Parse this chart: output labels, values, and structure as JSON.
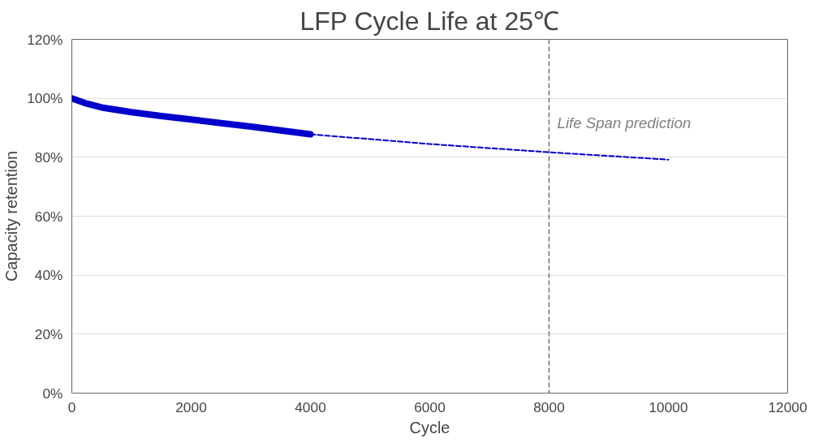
{
  "chart_data": {
    "type": "line",
    "title": "LFP Cycle Life at 25℃",
    "xlabel": "Cycle",
    "ylabel": "Capacity retention",
    "xlim": [
      0,
      12000
    ],
    "xticks": [
      0,
      2000,
      4000,
      6000,
      8000,
      10000,
      12000
    ],
    "ylim": [
      0,
      120
    ],
    "yticks": [
      {
        "value": 0,
        "label": "0%"
      },
      {
        "value": 20,
        "label": "20%"
      },
      {
        "value": 40,
        "label": "40%"
      },
      {
        "value": 60,
        "label": "60%"
      },
      {
        "value": 80,
        "label": "80%"
      },
      {
        "value": 100,
        "label": "100%"
      },
      {
        "value": 120,
        "label": "120%"
      }
    ],
    "grid": "y",
    "marker": "none",
    "series": [
      {
        "color": "#0000cc",
        "line_style": "solid",
        "x": [
          0,
          250,
          500,
          1000,
          1500,
          2000,
          2500,
          3000,
          3500,
          4000
        ],
        "values": [
          100,
          98.2,
          96.9,
          95.3,
          94.0,
          92.8,
          91.6,
          90.4,
          89.1,
          87.8
        ]
      },
      {
        "color": "#0000cc",
        "line_style": "dashed",
        "x": [
          4000,
          6000,
          8000,
          10000
        ],
        "values": [
          87.8,
          84.5,
          81.7,
          79.2
        ]
      }
    ],
    "ref_lines": [
      {
        "axis": "x",
        "value": 8000,
        "label": "Life Span prediction",
        "color": "#555555",
        "line_style": "dashed"
      }
    ]
  }
}
